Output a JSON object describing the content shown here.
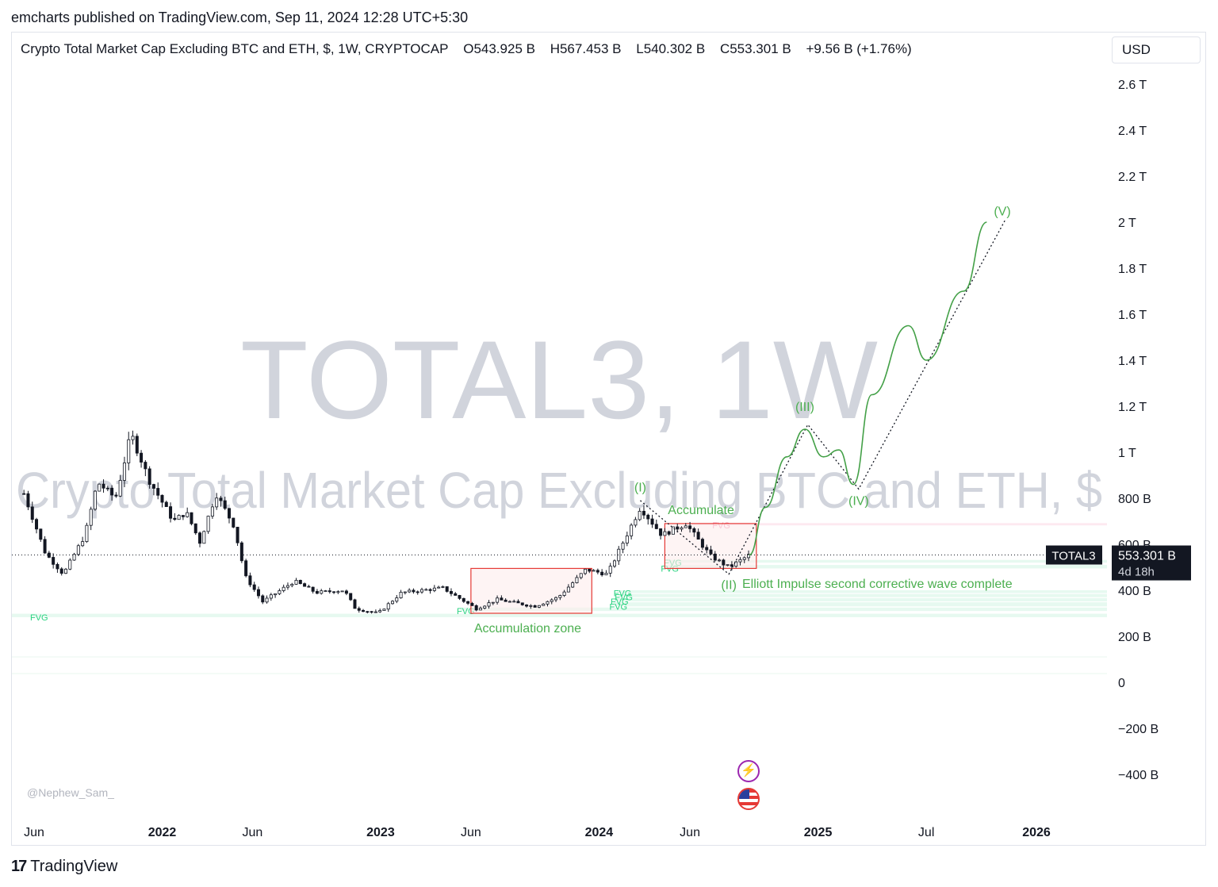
{
  "header": {
    "publisher_line": "emcharts published on TradingView.com, Sep 11, 2024 12:28 UTC+5:30"
  },
  "legend": {
    "title": "Crypto Total Market Cap Excluding BTC and ETH, $, 1W, CRYPTOCAP",
    "open": "O543.925 B",
    "high": "H567.453 B",
    "low": "L540.302 B",
    "close": "C553.301 B",
    "change": "+9.56 B (+1.76%)"
  },
  "currency_button": "USD",
  "watermark": {
    "symbol": "TOTAL3, 1W",
    "description": "Crypto Total Market Cap Excluding BTC and ETH, $"
  },
  "author_tag": "@Nephew_Sam_",
  "brand": "TradingView",
  "price_label": {
    "symbol": "TOTAL3",
    "value": "553.301 B",
    "countdown": "4d 18h"
  },
  "colors": {
    "candle": "#131722",
    "wave": "#43a047",
    "label_green": "#4caf50",
    "box_red": "#e53935",
    "box_fill": "#fdecec",
    "fvg_fill": "#e3f8ee",
    "fvg_text": "#2bd381",
    "fvg_red_text": "#f48fb1",
    "watermark": "#d1d4dc"
  },
  "chart_data": {
    "type": "candlestick",
    "title": "Crypto Total Market Cap Excluding BTC and ETH, $, 1W, CRYPTOCAP",
    "y_unit": "B",
    "y_ticks": [
      {
        "value": 2600,
        "label": "2.6 T"
      },
      {
        "value": 2400,
        "label": "2.4 T"
      },
      {
        "value": 2200,
        "label": "2.2 T"
      },
      {
        "value": 2000,
        "label": "2 T"
      },
      {
        "value": 1800,
        "label": "1.8 T"
      },
      {
        "value": 1600,
        "label": "1.6 T"
      },
      {
        "value": 1400,
        "label": "1.4 T"
      },
      {
        "value": 1200,
        "label": "1.2 T"
      },
      {
        "value": 1000,
        "label": "1 T"
      },
      {
        "value": 800,
        "label": "800 B"
      },
      {
        "value": 600,
        "label": "600 B"
      },
      {
        "value": 400,
        "label": "400 B"
      },
      {
        "value": 200,
        "label": "200 B"
      },
      {
        "value": 0,
        "label": "0"
      },
      {
        "value": -200,
        "label": "−200 B"
      },
      {
        "value": -400,
        "label": "−400 B"
      }
    ],
    "x_ticks": [
      {
        "date": "2021-06",
        "label": "Jun",
        "bold": false
      },
      {
        "date": "2022-01",
        "label": "2022",
        "bold": true
      },
      {
        "date": "2022-06",
        "label": "Jun",
        "bold": false
      },
      {
        "date": "2023-01",
        "label": "2023",
        "bold": true
      },
      {
        "date": "2023-06",
        "label": "Jun",
        "bold": false
      },
      {
        "date": "2024-01",
        "label": "2024",
        "bold": true
      },
      {
        "date": "2024-06",
        "label": "Jun",
        "bold": false
      },
      {
        "date": "2025-01",
        "label": "2025",
        "bold": true
      },
      {
        "date": "2025-07",
        "label": "Jul",
        "bold": false
      },
      {
        "date": "2026-01",
        "label": "2026",
        "bold": true
      }
    ],
    "price_path": [
      {
        "date": "2021-05-15",
        "value": 820
      },
      {
        "date": "2021-06-20",
        "value": 560
      },
      {
        "date": "2021-07-20",
        "value": 470
      },
      {
        "date": "2021-08-25",
        "value": 640
      },
      {
        "date": "2021-09-15",
        "value": 870
      },
      {
        "date": "2021-10-15",
        "value": 800
      },
      {
        "date": "2021-11-10",
        "value": 1080
      },
      {
        "date": "2021-12-10",
        "value": 880
      },
      {
        "date": "2022-01-20",
        "value": 700
      },
      {
        "date": "2022-02-10",
        "value": 740
      },
      {
        "date": "2022-03-05",
        "value": 610
      },
      {
        "date": "2022-04-01",
        "value": 820
      },
      {
        "date": "2022-05-01",
        "value": 680
      },
      {
        "date": "2022-05-20",
        "value": 460
      },
      {
        "date": "2022-06-18",
        "value": 350
      },
      {
        "date": "2022-08-10",
        "value": 440
      },
      {
        "date": "2022-09-15",
        "value": 390
      },
      {
        "date": "2022-11-01",
        "value": 400
      },
      {
        "date": "2022-11-20",
        "value": 320
      },
      {
        "date": "2022-12-28",
        "value": 300
      },
      {
        "date": "2023-02-05",
        "value": 390
      },
      {
        "date": "2023-04-15",
        "value": 410
      },
      {
        "date": "2023-06-10",
        "value": 320
      },
      {
        "date": "2023-07-15",
        "value": 360
      },
      {
        "date": "2023-09-15",
        "value": 330
      },
      {
        "date": "2023-10-25",
        "value": 370
      },
      {
        "date": "2023-12-10",
        "value": 490
      },
      {
        "date": "2024-01-15",
        "value": 470
      },
      {
        "date": "2024-03-10",
        "value": 760
      },
      {
        "date": "2024-04-15",
        "value": 640
      },
      {
        "date": "2024-05-25",
        "value": 690
      },
      {
        "date": "2024-07-05",
        "value": 550
      },
      {
        "date": "2024-08-05",
        "value": 500
      },
      {
        "date": "2024-09-08",
        "value": 553
      }
    ],
    "projection_wave": [
      {
        "date": "2024-09-08",
        "value": 553
      },
      {
        "date": "2024-10-05",
        "value": 760
      },
      {
        "date": "2024-11-10",
        "value": 980
      },
      {
        "date": "2024-12-10",
        "value": 1100
      },
      {
        "date": "2025-01-10",
        "value": 980
      },
      {
        "date": "2025-02-05",
        "value": 1010
      },
      {
        "date": "2025-03-01",
        "value": 860
      },
      {
        "date": "2025-04-01",
        "value": 1250
      },
      {
        "date": "2025-06-01",
        "value": 1550
      },
      {
        "date": "2025-07-01",
        "value": 1400
      },
      {
        "date": "2025-09-01",
        "value": 1700
      },
      {
        "date": "2025-10-10",
        "value": 2000
      }
    ],
    "elliott_dotted": [
      {
        "date": "2024-03-10",
        "value": 790
      },
      {
        "date": "2024-08-05",
        "value": 470
      },
      {
        "date": "2024-12-15",
        "value": 1120
      },
      {
        "date": "2025-03-10",
        "value": 840
      },
      {
        "date": "2025-11-10",
        "value": 2010
      }
    ],
    "wave_labels": [
      {
        "text": "(I)",
        "date": "2024-03-10",
        "value": 830
      },
      {
        "text": "(II)",
        "date": "2024-08-05",
        "value": 405
      },
      {
        "text": "(III)",
        "date": "2024-12-10",
        "value": 1180
      },
      {
        "text": "(IV)",
        "date": "2025-03-10",
        "value": 770
      },
      {
        "text": "(V)",
        "date": "2025-11-05",
        "value": 2030
      }
    ],
    "zones": [
      {
        "label": "Accumulation zone",
        "x_start": "2023-06-01",
        "x_end": "2023-12-20",
        "y_low": 300,
        "y_high": 495
      },
      {
        "label": "Accumulate",
        "x_start": "2024-04-20",
        "x_end": "2024-09-20",
        "y_low": 495,
        "y_high": 690
      }
    ],
    "annotation": "Elliott Impulse second corrective wave complete",
    "fvg_bands": [
      {
        "y_low": 283,
        "y_high": 298,
        "label": "FVG",
        "label_date": "2021-06-01",
        "color": "green"
      },
      {
        "y_low": 310,
        "y_high": 325,
        "label": "FVG",
        "label_date": "2023-05-15",
        "color": "green"
      },
      {
        "y_low": 330,
        "y_high": 348,
        "label": "FVG",
        "label_date": "2024-01-25",
        "color": "green"
      },
      {
        "y_low": 352,
        "y_high": 366,
        "label": "FVG",
        "label_date": "2024-01-27",
        "color": "green"
      },
      {
        "y_low": 370,
        "y_high": 384,
        "label": "FVG",
        "label_date": "2024-02-03",
        "color": "green"
      },
      {
        "y_low": 388,
        "y_high": 400,
        "label": "FVG",
        "label_date": "2024-02-01",
        "color": "green"
      },
      {
        "y_low": 495,
        "y_high": 510,
        "label": "FVG",
        "label_date": "2024-04-20",
        "color": "green"
      },
      {
        "y_low": 520,
        "y_high": 532,
        "label": "FVG",
        "label_date": "2024-04-25",
        "color": "green"
      },
      {
        "y_low": 682,
        "y_high": 692,
        "label": "FVG",
        "label_date": "2024-07-15",
        "color": "red"
      }
    ],
    "current_price": 553.301
  }
}
